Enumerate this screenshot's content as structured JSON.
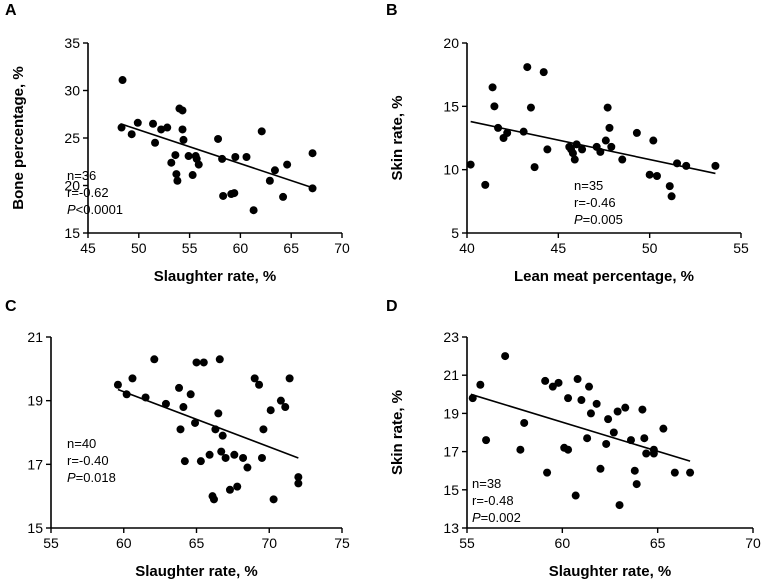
{
  "chart_data": [
    {
      "type": "scatter",
      "panel_label": "A",
      "xlabel": "Slaughter rate, %",
      "ylabel": "Bone percentage, %",
      "xlim": [
        45,
        70
      ],
      "ylim": [
        15,
        35
      ],
      "xticks": [
        45,
        50,
        55,
        60,
        65,
        70
      ],
      "yticks": [
        15,
        20,
        25,
        30,
        35
      ],
      "stats": {
        "n": "n=36",
        "r": "r=-0.62",
        "p_symbol": "P",
        "p_rest": "<0.0001"
      },
      "fit_line": {
        "x": [
          48.2,
          67.3
        ],
        "y": [
          26.5,
          19.7
        ]
      },
      "points": [
        [
          48.4,
          31.1
        ],
        [
          48.3,
          26.1
        ],
        [
          49.3,
          25.4
        ],
        [
          49.9,
          26.6
        ],
        [
          51.4,
          26.5
        ],
        [
          51.6,
          24.5
        ],
        [
          52.2,
          25.9
        ],
        [
          52.8,
          26.1
        ],
        [
          53.2,
          22.4
        ],
        [
          53.6,
          23.2
        ],
        [
          53.7,
          21.2
        ],
        [
          53.8,
          20.5
        ],
        [
          54.0,
          28.1
        ],
        [
          54.3,
          27.9
        ],
        [
          54.3,
          25.9
        ],
        [
          54.4,
          24.8
        ],
        [
          54.9,
          23.1
        ],
        [
          55.3,
          21.1
        ],
        [
          55.6,
          23.1
        ],
        [
          55.7,
          22.8
        ],
        [
          55.9,
          22.2
        ],
        [
          57.8,
          24.9
        ],
        [
          58.2,
          22.8
        ],
        [
          58.3,
          18.9
        ],
        [
          59.1,
          19.1
        ],
        [
          59.4,
          19.2
        ],
        [
          59.5,
          23.0
        ],
        [
          60.6,
          23.0
        ],
        [
          61.3,
          17.4
        ],
        [
          62.1,
          25.7
        ],
        [
          62.9,
          20.5
        ],
        [
          63.4,
          21.6
        ],
        [
          64.2,
          18.8
        ],
        [
          64.6,
          22.2
        ],
        [
          67.1,
          23.4
        ],
        [
          67.1,
          19.7
        ]
      ]
    },
    {
      "type": "scatter",
      "panel_label": "B",
      "xlabel": "Lean meat percentage, %",
      "ylabel": "Skin rate, %",
      "xlim": [
        40,
        55
      ],
      "ylim": [
        5,
        20
      ],
      "xticks": [
        40,
        45,
        50,
        55
      ],
      "yticks": [
        5,
        10,
        15,
        20
      ],
      "stats": {
        "n": "n=35",
        "r": "r=-0.46",
        "p_symbol": "P",
        "p_rest": "=0.005"
      },
      "fit_line": {
        "x": [
          40.2,
          53.6
        ],
        "y": [
          13.8,
          9.7
        ]
      },
      "points": [
        [
          40.2,
          10.4
        ],
        [
          41.0,
          8.8
        ],
        [
          41.4,
          16.5
        ],
        [
          41.5,
          15.0
        ],
        [
          41.7,
          13.3
        ],
        [
          42.0,
          12.5
        ],
        [
          42.2,
          12.9
        ],
        [
          43.1,
          13.0
        ],
        [
          43.3,
          18.1
        ],
        [
          43.5,
          14.9
        ],
        [
          43.7,
          10.2
        ],
        [
          44.2,
          17.7
        ],
        [
          44.4,
          11.6
        ],
        [
          45.6,
          11.8
        ],
        [
          45.7,
          11.6
        ],
        [
          45.8,
          11.3
        ],
        [
          45.9,
          10.8
        ],
        [
          46.0,
          12.0
        ],
        [
          46.3,
          11.6
        ],
        [
          47.1,
          11.8
        ],
        [
          47.3,
          11.4
        ],
        [
          47.6,
          12.3
        ],
        [
          47.7,
          14.9
        ],
        [
          47.8,
          13.3
        ],
        [
          47.9,
          11.8
        ],
        [
          48.5,
          10.8
        ],
        [
          49.3,
          12.9
        ],
        [
          50.0,
          9.6
        ],
        [
          50.2,
          12.3
        ],
        [
          50.4,
          9.5
        ],
        [
          51.1,
          8.7
        ],
        [
          51.2,
          7.9
        ],
        [
          51.5,
          10.5
        ],
        [
          52.0,
          10.3
        ],
        [
          53.6,
          10.3
        ]
      ]
    },
    {
      "type": "scatter",
      "panel_label": "C",
      "xlabel": "Slaughter rate, %",
      "ylabel": "Skin rate, %",
      "xlim": [
        55,
        75
      ],
      "ylim": [
        15,
        21
      ],
      "xticks": [
        55,
        60,
        65,
        70,
        75
      ],
      "yticks": [
        15,
        17,
        19,
        21
      ],
      "stats": {
        "n": "n=40",
        "r": "r=-0.40",
        "p_symbol": "P",
        "p_rest": "=0.018"
      },
      "fit_line": {
        "x": [
          59.6,
          72.0
        ],
        "y": [
          19.35,
          17.2
        ]
      },
      "points": [
        [
          59.6,
          19.5
        ],
        [
          60.2,
          19.2
        ],
        [
          60.6,
          19.7
        ],
        [
          61.5,
          19.1
        ],
        [
          62.1,
          20.3
        ],
        [
          63.8,
          19.4
        ],
        [
          64.1,
          18.8
        ],
        [
          64.2,
          17.1
        ],
        [
          64.6,
          19.2
        ],
        [
          64.9,
          18.3
        ],
        [
          65.0,
          20.2
        ],
        [
          65.3,
          17.1
        ],
        [
          65.5,
          20.2
        ],
        [
          65.9,
          17.3
        ],
        [
          66.1,
          16.0
        ],
        [
          66.2,
          15.9
        ],
        [
          66.3,
          18.1
        ],
        [
          66.6,
          20.3
        ],
        [
          66.7,
          17.4
        ],
        [
          66.8,
          17.9
        ],
        [
          67.0,
          17.2
        ],
        [
          67.3,
          16.2
        ],
        [
          67.6,
          17.3
        ],
        [
          67.8,
          16.3
        ],
        [
          68.2,
          17.2
        ],
        [
          68.5,
          16.9
        ],
        [
          69.0,
          19.7
        ],
        [
          69.3,
          19.5
        ],
        [
          69.5,
          17.2
        ],
        [
          70.1,
          18.7
        ],
        [
          70.3,
          15.9
        ],
        [
          70.8,
          19.0
        ],
        [
          71.1,
          18.8
        ],
        [
          71.4,
          19.7
        ],
        [
          72.0,
          16.6
        ],
        [
          72.0,
          16.4
        ],
        [
          63.9,
          18.1
        ],
        [
          66.5,
          18.6
        ],
        [
          69.6,
          18.1
        ],
        [
          62.9,
          18.9
        ]
      ]
    },
    {
      "type": "scatter",
      "panel_label": "D",
      "xlabel": "Slaughter rate, %",
      "ylabel": "Skin rate, %",
      "xlim": [
        55,
        70
      ],
      "ylim": [
        13,
        23
      ],
      "xticks": [
        55,
        60,
        65,
        70
      ],
      "yticks": [
        13,
        15,
        17,
        19,
        21,
        23
      ],
      "stats": {
        "n": "n=38",
        "r": "r=-0.48",
        "p_symbol": "P",
        "p_rest": "=0.002"
      },
      "fit_line": {
        "x": [
          55.2,
          66.7
        ],
        "y": [
          20.0,
          16.5
        ]
      },
      "points": [
        [
          55.3,
          19.8
        ],
        [
          55.7,
          20.5
        ],
        [
          56.0,
          17.6
        ],
        [
          57.0,
          22.0
        ],
        [
          57.8,
          17.1
        ],
        [
          58.0,
          18.5
        ],
        [
          59.1,
          20.7
        ],
        [
          59.2,
          15.9
        ],
        [
          59.5,
          20.4
        ],
        [
          59.8,
          20.6
        ],
        [
          60.1,
          17.2
        ],
        [
          60.3,
          19.8
        ],
        [
          60.3,
          17.1
        ],
        [
          60.7,
          14.7
        ],
        [
          60.8,
          20.8
        ],
        [
          61.0,
          19.7
        ],
        [
          61.3,
          17.7
        ],
        [
          61.4,
          20.4
        ],
        [
          61.5,
          19.0
        ],
        [
          61.8,
          19.5
        ],
        [
          62.0,
          16.1
        ],
        [
          62.3,
          17.4
        ],
        [
          62.7,
          18.0
        ],
        [
          62.9,
          19.1
        ],
        [
          63.0,
          14.2
        ],
        [
          63.3,
          19.3
        ],
        [
          63.6,
          17.6
        ],
        [
          63.8,
          16.0
        ],
        [
          63.9,
          15.3
        ],
        [
          64.2,
          19.2
        ],
        [
          64.3,
          17.7
        ],
        [
          64.4,
          16.9
        ],
        [
          64.8,
          17.1
        ],
        [
          64.8,
          16.9
        ],
        [
          65.3,
          18.2
        ],
        [
          65.9,
          15.9
        ],
        [
          66.7,
          15.9
        ],
        [
          62.4,
          18.7
        ]
      ]
    }
  ]
}
